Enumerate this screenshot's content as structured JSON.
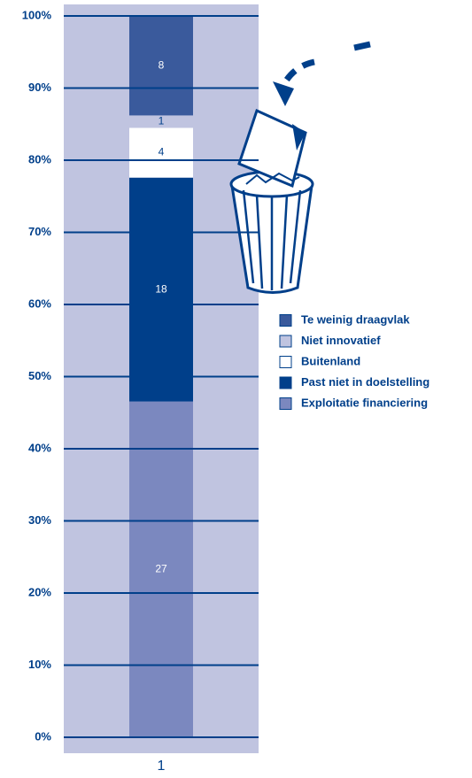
{
  "chart_data": {
    "type": "bar",
    "stacked": "percent",
    "categories": [
      "1"
    ],
    "series": [
      {
        "name": "Exploitatie financiering",
        "color": "#7b88bf",
        "values": [
          27
        ]
      },
      {
        "name": "Past niet in doelstelling",
        "color": "#003f8a",
        "values": [
          18
        ]
      },
      {
        "name": "Buitenland",
        "color": "#ffffff",
        "values": [
          4
        ]
      },
      {
        "name": "Niet innovatief",
        "color": "#c0c4e0",
        "values": [
          1
        ]
      },
      {
        "name": "Te weinig draagvlak",
        "color": "#3a5a9c",
        "values": [
          8
        ]
      }
    ],
    "ylim": [
      0,
      100
    ],
    "yticks": [
      {
        "value": 0,
        "label": "0%"
      },
      {
        "value": 10,
        "label": "10%"
      },
      {
        "value": 20,
        "label": "20%"
      },
      {
        "value": 30,
        "label": "30%"
      },
      {
        "value": 40,
        "label": "40%"
      },
      {
        "value": 50,
        "label": "50%"
      },
      {
        "value": 60,
        "label": "60%"
      },
      {
        "value": 70,
        "label": "70%"
      },
      {
        "value": 80,
        "label": "80%"
      },
      {
        "value": 90,
        "label": "90%"
      },
      {
        "value": 100,
        "label": "100%"
      }
    ],
    "grid": true,
    "plot_background": "#c0c4e0"
  }
}
